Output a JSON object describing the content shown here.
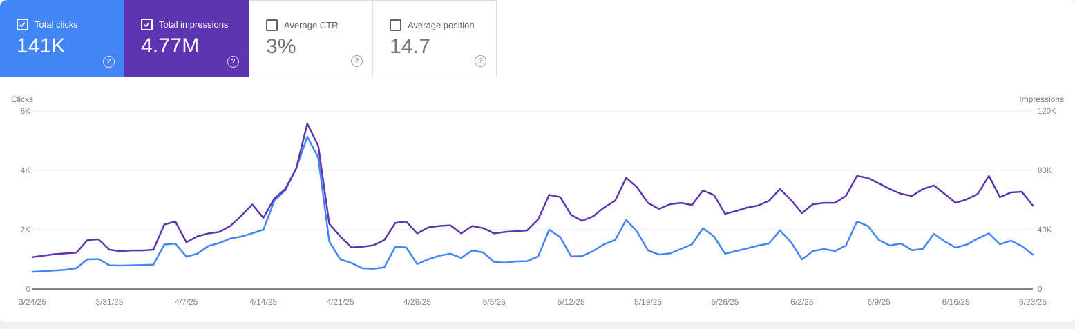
{
  "cards": [
    {
      "label": "Total clicks",
      "value": "141K",
      "checked": true,
      "bg": "#4285f4"
    },
    {
      "label": "Total impressions",
      "value": "4.77M",
      "checked": true,
      "bg": "#5e35b1"
    },
    {
      "label": "Average CTR",
      "value": "3%",
      "checked": false,
      "bg": "#ffffff"
    },
    {
      "label": "Average position",
      "value": "14.7",
      "checked": false,
      "bg": "#ffffff"
    }
  ],
  "help_glyph": "?",
  "chart_data": {
    "type": "line",
    "title": "",
    "legend_position": "none",
    "grid": true,
    "colors": {
      "grid": "#e8eaed",
      "baseline": "#80868b",
      "tick_text": "#80868b",
      "title_text": "#757575"
    },
    "left_axis": {
      "title": "Clicks",
      "max": 6000,
      "tick_values": [
        0,
        2000,
        4000,
        6000
      ],
      "tick_labels": [
        "0",
        "2K",
        "4K",
        "6K"
      ]
    },
    "right_axis": {
      "title": "Impressions",
      "max": 120000,
      "tick_values": [
        0,
        40000,
        80000,
        120000
      ],
      "tick_labels": [
        "0",
        "40K",
        "80K",
        "120K"
      ]
    },
    "x_tick_days": [
      0,
      7,
      14,
      21,
      28,
      35,
      42,
      49,
      56,
      63,
      70,
      77,
      84,
      91
    ],
    "x_tick_labels": [
      "3/24/25",
      "3/31/25",
      "4/7/25",
      "4/14/25",
      "4/21/25",
      "4/28/25",
      "5/5/25",
      "5/12/25",
      "5/19/25",
      "5/26/25",
      "6/2/25",
      "6/9/25",
      "6/16/25",
      "6/23/25"
    ],
    "series": [
      {
        "name": "Total clicks",
        "key": "clicks-line",
        "axis": "left",
        "color": "#4285f4",
        "values": [
          580,
          600,
          620,
          650,
          700,
          1000,
          1010,
          800,
          790,
          800,
          810,
          820,
          1500,
          1530,
          1090,
          1190,
          1450,
          1550,
          1700,
          1770,
          1880,
          2000,
          2980,
          3330,
          4070,
          5140,
          4420,
          1600,
          1000,
          880,
          700,
          680,
          730,
          1420,
          1400,
          840,
          1000,
          1120,
          1190,
          1050,
          1300,
          1230,
          910,
          890,
          930,
          940,
          1100,
          2000,
          1750,
          1100,
          1110,
          1280,
          1510,
          1650,
          2330,
          1930,
          1300,
          1160,
          1200,
          1350,
          1510,
          2050,
          1770,
          1190,
          1280,
          1370,
          1465,
          1535,
          1977,
          1580,
          1000,
          1280,
          1349,
          1280,
          1465,
          2280,
          2120,
          1650,
          1465,
          1536,
          1310,
          1350,
          1860,
          1600,
          1395,
          1500,
          1700,
          1880,
          1510,
          1630,
          1450,
          1160
        ]
      },
      {
        "name": "Total impressions",
        "key": "impressions-line",
        "axis": "right",
        "color": "#5e35b1",
        "values": [
          21500,
          22500,
          23500,
          24000,
          24500,
          33000,
          33500,
          26500,
          25500,
          26000,
          26000,
          26500,
          43500,
          45500,
          31500,
          35500,
          37500,
          38500,
          42500,
          49500,
          57000,
          48000,
          61000,
          67500,
          81500,
          111500,
          96500,
          44000,
          35500,
          28000,
          28500,
          29500,
          33000,
          44500,
          45500,
          37500,
          41500,
          42500,
          43000,
          37500,
          42500,
          41000,
          37500,
          38500,
          39000,
          39500,
          47000,
          63500,
          62000,
          50000,
          46000,
          49000,
          55000,
          59500,
          75000,
          68500,
          58000,
          54000,
          57200,
          58100,
          56700,
          66500,
          63300,
          50700,
          52600,
          54900,
          56300,
          59500,
          67400,
          60000,
          51200,
          57200,
          58100,
          58100,
          62800,
          76300,
          74900,
          71200,
          67400,
          64200,
          62800,
          67400,
          69800,
          64000,
          58100,
          60500,
          64200,
          76300,
          61900,
          65100,
          65600,
          56300
        ]
      }
    ]
  }
}
